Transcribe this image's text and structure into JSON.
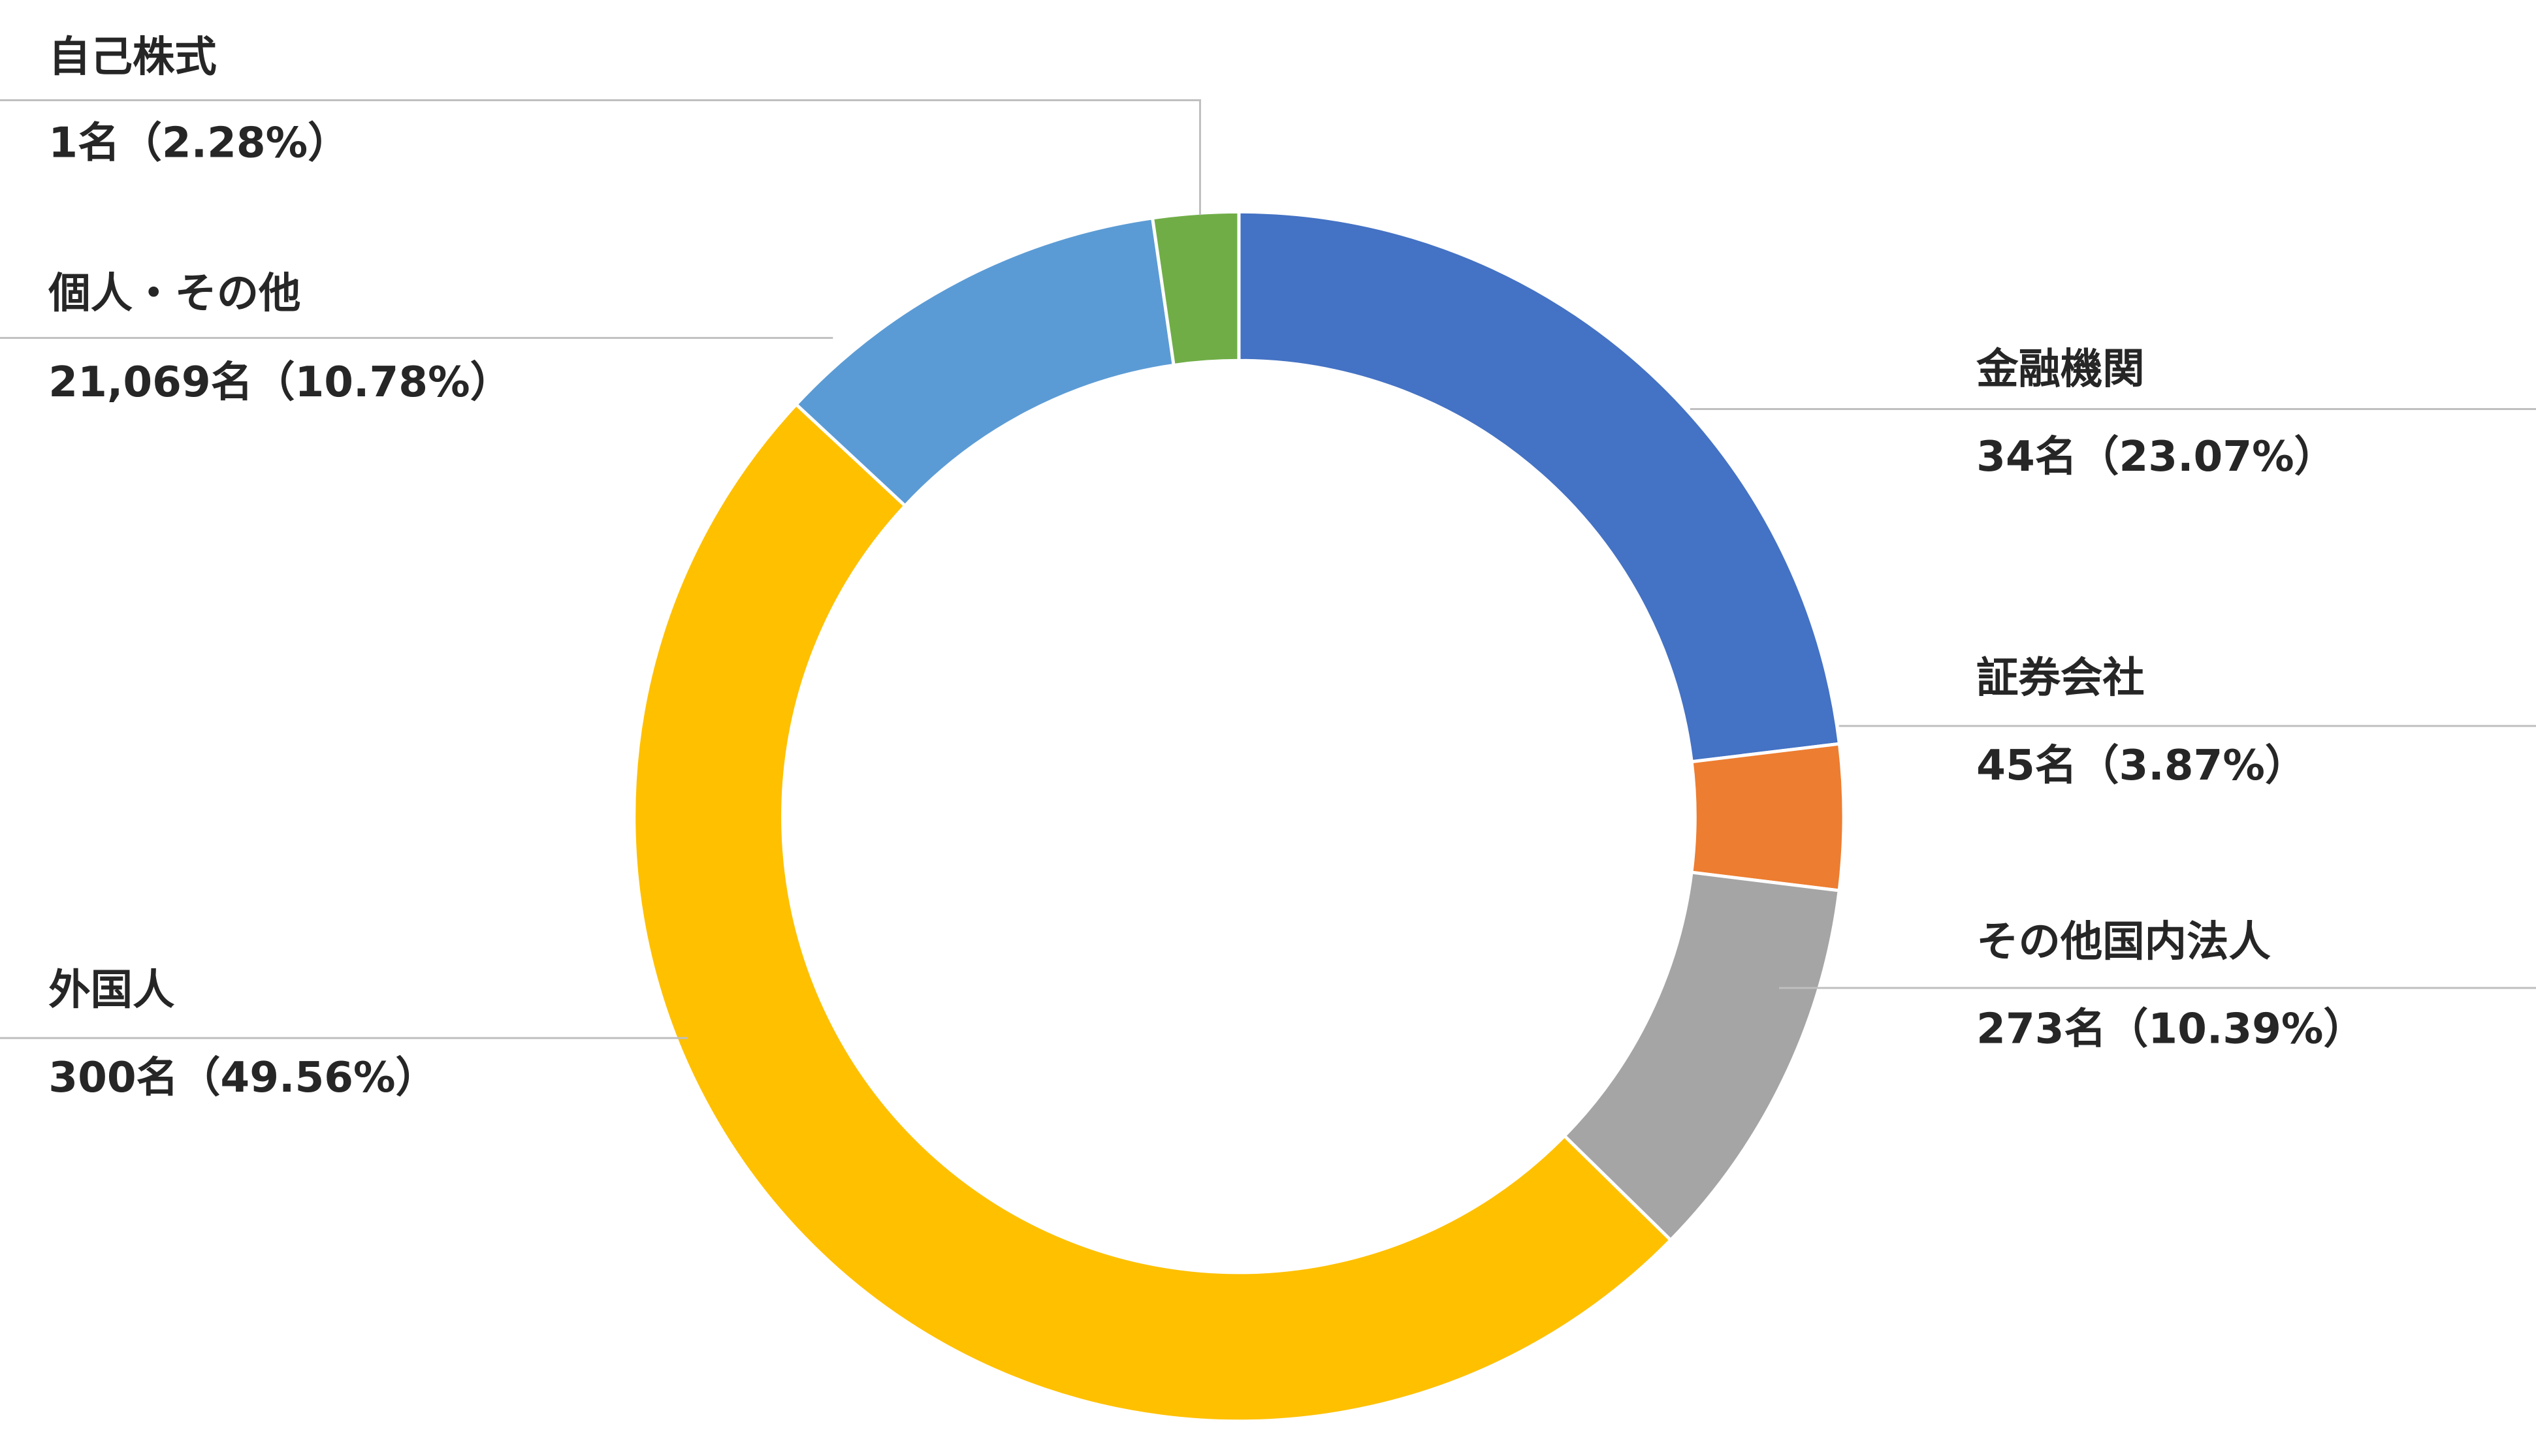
{
  "chart_data": {
    "type": "donut",
    "categories": [
      "金融機関",
      "証券会社",
      "その他国内法人",
      "外国人",
      "個人・その他",
      "自己株式"
    ],
    "values": [
      23.07,
      3.87,
      10.39,
      49.56,
      10.78,
      2.28
    ],
    "value_labels": [
      "34名（23.07%）",
      "45名（3.87%）",
      "273名（10.39%）",
      "300名（49.56%）",
      "21,069名（10.78%）",
      "1名（2.28%）"
    ],
    "colors": [
      "#4472c4",
      "#ed7d31",
      "#a5a5a5",
      "#ffc000",
      "#5b9bd5",
      "#70ad47"
    ]
  }
}
